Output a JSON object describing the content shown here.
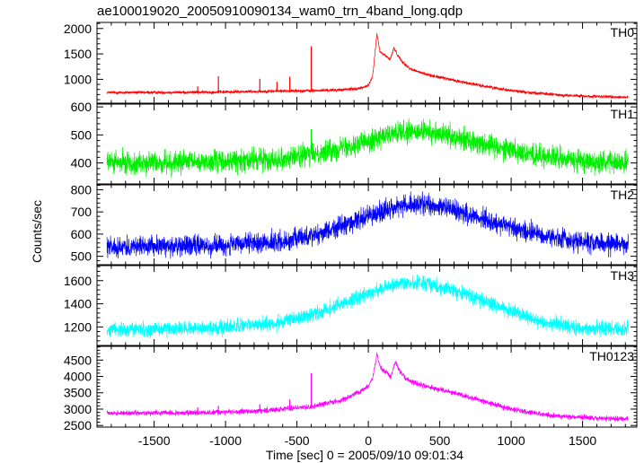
{
  "chart_data": {
    "type": "line",
    "title": "ae100019020_20050910090134_wam0_trn_4band_long.qdp",
    "xlabel": "Time [sec] 0 = 2005/09/10 09:01:34",
    "ylabel": "Counts/sec",
    "xlim": [
      -1900,
      1880
    ],
    "x_ticks": [
      -1500,
      -1000,
      -500,
      0,
      500,
      1000,
      1500
    ],
    "x_range_data": [
      -1830,
      1820
    ],
    "panels": [
      {
        "name": "TH0",
        "color": "#ff0000",
        "ylim": [
          530,
          2120
        ],
        "y_ticks": [
          1000,
          1500,
          2000
        ],
        "noise": 22,
        "series": {
          "name": "TH0",
          "x": [
            -1830,
            -1500,
            -1200,
            -1000,
            -800,
            -600,
            -400,
            -200,
            -100,
            -50,
            0,
            30,
            60,
            80,
            100,
            130,
            150,
            180,
            200,
            230,
            260,
            300,
            400,
            600,
            800,
            1000,
            1200,
            1400,
            1600,
            1820
          ],
          "y": [
            740,
            740,
            745,
            750,
            760,
            770,
            775,
            790,
            810,
            830,
            880,
            1050,
            1900,
            1550,
            1500,
            1450,
            1380,
            1620,
            1500,
            1380,
            1280,
            1200,
            1100,
            980,
            870,
            780,
            720,
            680,
            660,
            650
          ]
        }
      },
      {
        "name": "TH1",
        "color": "#00ee00",
        "ylim": [
          325,
          610
        ],
        "y_ticks": [
          400,
          500,
          600
        ],
        "noise": 28,
        "series": {
          "name": "TH1",
          "x": [
            -1830,
            -1500,
            -1000,
            -600,
            -300,
            0,
            200,
            400,
            600,
            900,
            1200,
            1500,
            1820
          ],
          "y": [
            400,
            400,
            405,
            415,
            440,
            480,
            505,
            510,
            495,
            460,
            425,
            405,
            400
          ]
        }
      },
      {
        "name": "TH2",
        "color": "#0000ff",
        "ylim": [
          462,
          822
        ],
        "y_ticks": [
          500,
          600,
          700,
          800
        ],
        "noise": 32,
        "series": {
          "name": "TH2",
          "x": [
            -1830,
            -1500,
            -1000,
            -600,
            -300,
            0,
            200,
            400,
            600,
            900,
            1200,
            1500,
            1820
          ],
          "y": [
            545,
            545,
            550,
            565,
            610,
            680,
            725,
            735,
            710,
            650,
            595,
            565,
            555
          ]
        }
      },
      {
        "name": "TH3",
        "color": "#00ffff",
        "ylim": [
          1040,
          1730
        ],
        "y_ticks": [
          1200,
          1400,
          1600
        ],
        "noise": 45,
        "series": {
          "name": "TH3",
          "x": [
            -1830,
            -1500,
            -1000,
            -600,
            -300,
            0,
            200,
            400,
            600,
            900,
            1200,
            1500,
            1820
          ],
          "y": [
            1180,
            1180,
            1195,
            1240,
            1340,
            1490,
            1570,
            1580,
            1520,
            1380,
            1250,
            1190,
            1180
          ]
        }
      },
      {
        "name": "TH0123",
        "color": "#ff00ff",
        "ylim": [
          2450,
          4920
        ],
        "y_ticks": [
          2500,
          3000,
          3500,
          4000,
          4500
        ],
        "noise": 55,
        "series": {
          "name": "TH0123",
          "x": [
            -1830,
            -1500,
            -1200,
            -1000,
            -800,
            -600,
            -400,
            -200,
            -100,
            0,
            30,
            60,
            80,
            100,
            130,
            160,
            190,
            220,
            260,
            300,
            400,
            600,
            800,
            1000,
            1200,
            1400,
            1600,
            1820
          ],
          "y": [
            2880,
            2880,
            2890,
            2910,
            2940,
            3000,
            3080,
            3250,
            3450,
            3700,
            3950,
            4650,
            4350,
            4200,
            4100,
            4000,
            4450,
            4150,
            3950,
            3850,
            3700,
            3500,
            3250,
            3000,
            2850,
            2760,
            2720,
            2700
          ]
        }
      }
    ],
    "spikes": [
      {
        "panel": "TH0",
        "x": -1195,
        "y": 860
      },
      {
        "panel": "TH0",
        "x": -1050,
        "y": 1060
      },
      {
        "panel": "TH0",
        "x": -760,
        "y": 1010
      },
      {
        "panel": "TH0",
        "x": -640,
        "y": 950
      },
      {
        "panel": "TH0",
        "x": -550,
        "y": 1050
      },
      {
        "panel": "TH0",
        "x": -400,
        "y": 1650
      },
      {
        "panel": "TH1",
        "x": -400,
        "y": 520
      },
      {
        "panel": "TH0123",
        "x": -1195,
        "y": 3050
      },
      {
        "panel": "TH0123",
        "x": -1050,
        "y": 3100
      },
      {
        "panel": "TH0123",
        "x": -760,
        "y": 3150
      },
      {
        "panel": "TH0123",
        "x": -550,
        "y": 3300
      },
      {
        "panel": "TH0123",
        "x": -400,
        "y": 4100
      }
    ],
    "grid": false,
    "legend": "none"
  }
}
